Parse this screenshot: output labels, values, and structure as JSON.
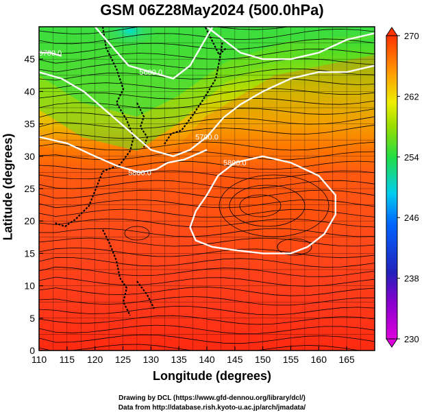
{
  "title": "GSM 06Z28May2024 (500.0hPa)",
  "xlabel": "Longitude (degrees)",
  "ylabel": "Latitude  (degrees)",
  "credits": [
    "Drawing by DCL (https://www.gfd-dennou.org/library/dcl/)",
    "Data from http://database.rish.kyoto-u.ac.jp/arch/jmadata/"
  ],
  "chart_data": {
    "type": "heatmap",
    "title": "GSM 06Z28May2024 (500.0hPa)",
    "xlabel": "Longitude (degrees)",
    "ylabel": "Latitude  (degrees)",
    "xlim": [
      110,
      170
    ],
    "ylim": [
      0,
      50
    ],
    "xticks": [
      110,
      115,
      120,
      125,
      130,
      135,
      140,
      145,
      150,
      155,
      160,
      165
    ],
    "yticks": [
      0,
      5,
      10,
      15,
      20,
      25,
      30,
      35,
      40,
      45
    ],
    "colorbar": {
      "range": [
        230,
        270
      ],
      "ticks": [
        230,
        238,
        246,
        254,
        262,
        270
      ],
      "colors": [
        "#cc00cc",
        "#2200aa",
        "#0077ff",
        "#00ccdd",
        "#33dd33",
        "#eeee00",
        "#ff9900",
        "#ff2200"
      ]
    },
    "contours": [
      {
        "label": "5700.0",
        "points": [
          [
            110,
            43
          ],
          [
            114,
            42
          ],
          [
            118,
            40
          ],
          [
            122,
            37
          ],
          [
            126,
            34
          ],
          [
            130,
            31
          ],
          [
            134,
            30
          ],
          [
            137,
            31
          ],
          [
            140,
            33
          ],
          [
            143,
            36
          ],
          [
            146,
            38
          ],
          [
            150,
            40
          ],
          [
            155,
            42
          ],
          [
            160,
            43
          ],
          [
            165,
            43
          ],
          [
            170,
            44
          ]
        ]
      },
      {
        "label": "5800.0",
        "points": [
          [
            110,
            33
          ],
          [
            115,
            32
          ],
          [
            120,
            30
          ],
          [
            124,
            28.5
          ],
          [
            128,
            27.5
          ],
          [
            131,
            28
          ],
          [
            133,
            29
          ],
          [
            136,
            29.5
          ],
          [
            140,
            31
          ]
        ]
      },
      {
        "label": "5800.0",
        "points": [
          [
            155,
            15
          ],
          [
            150,
            15
          ],
          [
            145,
            15.5
          ],
          [
            141,
            16
          ],
          [
            138,
            17
          ],
          [
            137,
            19
          ],
          [
            138,
            21.5
          ],
          [
            140,
            24
          ],
          [
            142,
            27
          ],
          [
            145,
            29
          ],
          [
            150,
            30
          ],
          [
            155,
            29
          ],
          [
            160,
            27
          ],
          [
            163,
            24
          ],
          [
            163,
            21
          ],
          [
            161,
            18
          ],
          [
            158,
            16
          ],
          [
            155,
            15
          ]
        ]
      },
      {
        "label": "",
        "points": [
          [
            140,
            50
          ],
          [
            143,
            48
          ],
          [
            146,
            46
          ],
          [
            150,
            45
          ],
          [
            155,
            45
          ],
          [
            160,
            46
          ],
          [
            165,
            48
          ],
          [
            170,
            49
          ]
        ]
      },
      {
        "label": "5700.0",
        "points": [
          [
            110,
            46
          ],
          [
            112,
            46
          ],
          [
            114,
            45.5
          ]
        ]
      },
      {
        "label": "5600.0",
        "points": [
          [
            120,
            50
          ],
          [
            122,
            48
          ],
          [
            124,
            46
          ],
          [
            126,
            44
          ],
          [
            130,
            43
          ],
          [
            134,
            42
          ],
          [
            137,
            44
          ],
          [
            139,
            47
          ],
          [
            141,
            50
          ]
        ]
      }
    ]
  }
}
